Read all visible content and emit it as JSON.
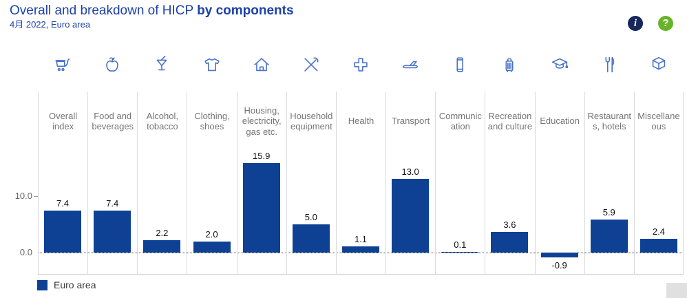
{
  "header": {
    "title_prefix": "Overall and breakdown of HICP ",
    "title_emphasis": "by components",
    "subtitle": "4月 2022, Euro area",
    "info_button": "i",
    "help_button": "?"
  },
  "chart_data": {
    "type": "bar",
    "title": "Overall and breakdown of HICP by components",
    "subtitle": "4月 2022, Euro area",
    "categories": [
      "Overall index",
      "Food and beverages",
      "Alcohol, tobacco",
      "Clothing, shoes",
      "Housing, electricity, gas etc.",
      "Household equipment",
      "Health",
      "Transport",
      "Communication",
      "Recreation and culture",
      "Education",
      "Restaurants, hotels",
      "Miscellaneous"
    ],
    "category_icons": [
      "shopping-cart-icon",
      "apple-icon",
      "cocktail-icon",
      "tshirt-icon",
      "house-icon",
      "tools-icon",
      "health-cross-icon",
      "airplane-icon",
      "mobile-phone-icon",
      "suitcase-icon",
      "graduation-cap-icon",
      "fork-knife-icon",
      "package-box-icon"
    ],
    "series": [
      {
        "name": "Euro area",
        "values": [
          7.4,
          7.4,
          2.2,
          2.0,
          15.9,
          5.0,
          1.1,
          13.0,
          0.1,
          3.6,
          -0.9,
          5.9,
          2.4
        ],
        "color": "#0e4094"
      }
    ],
    "yticks": [
      {
        "value": 10.0,
        "label": "10.0"
      },
      {
        "value": 0.0,
        "label": "0.0"
      }
    ],
    "ylim": [
      -3.8,
      28.5
    ],
    "value_decimals": 1,
    "grid": "vertical-only",
    "legend_position": "bottom-left"
  },
  "legend": {
    "items": [
      {
        "label": "Euro area",
        "color": "#0e4094"
      }
    ]
  },
  "colors": {
    "title": "#1d41aa",
    "bar": "#0e4094",
    "icon": "#4a72c8",
    "category_label": "#757575",
    "axis_label": "#666666",
    "value_label": "#111111",
    "info_bg": "#17275c",
    "help_bg": "#69b32a"
  }
}
